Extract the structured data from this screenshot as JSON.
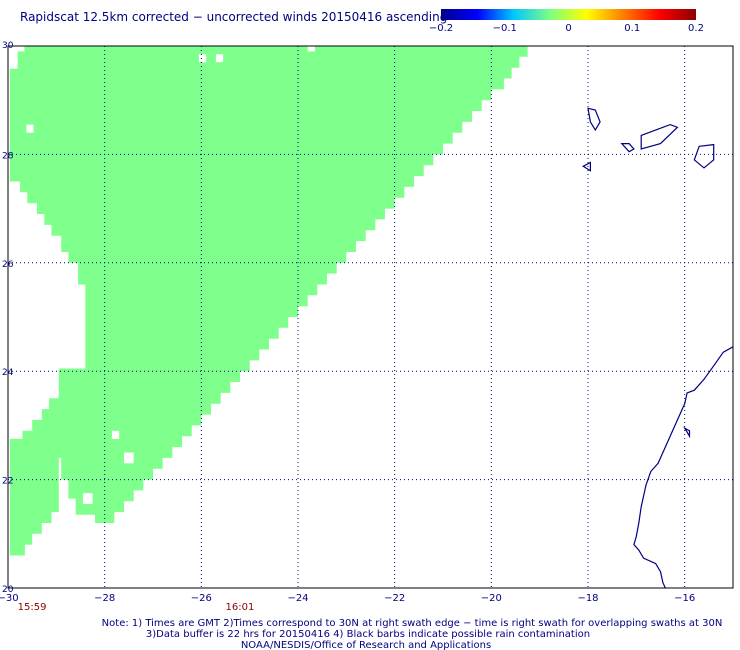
{
  "title": "Rapidscat 12.5km corrected − uncorrected winds 20150416 ascending",
  "colorbar": {
    "ticks": [
      "−0.2",
      "−0.1",
      "0",
      "0.1",
      "0.2"
    ],
    "values": [
      -0.2,
      -0.1,
      0,
      0.1,
      0.2
    ],
    "colors": [
      "#00008c",
      "#0000ff",
      "#00c8ff",
      "#7fff7f",
      "#ffff00",
      "#ff7f00",
      "#ff0000",
      "#8c0000"
    ]
  },
  "map": {
    "lon_range": [
      -30,
      -15
    ],
    "lat_range": [
      20,
      30
    ],
    "x_tick_values": [
      -30,
      -28,
      -26,
      -24,
      -22,
      -20,
      -18,
      -16
    ],
    "x_tick_labels": [
      "−30",
      "−28",
      "−26",
      "−24",
      "−22",
      "−20",
      "−18",
      "−16"
    ],
    "y_tick_values": [
      20,
      22,
      24,
      26,
      28,
      30
    ],
    "y_tick_labels": [
      "20",
      "22",
      "24",
      "26",
      "28",
      "30"
    ],
    "gridlines": true,
    "swath_color": "#7fff8c",
    "coast_color": "#000080",
    "swath_polygon": [
      [
        -29.96,
        29.58
      ],
      [
        -29.8,
        29.58
      ],
      [
        -29.8,
        29.9
      ],
      [
        -29.66,
        29.9
      ],
      [
        -29.66,
        30.0
      ],
      [
        -19.25,
        30.0
      ],
      [
        -19.25,
        29.8
      ],
      [
        -19.42,
        29.8
      ],
      [
        -19.42,
        29.6
      ],
      [
        -19.58,
        29.6
      ],
      [
        -19.58,
        29.4
      ],
      [
        -19.74,
        29.4
      ],
      [
        -19.74,
        29.2
      ],
      [
        -20.0,
        29.2
      ],
      [
        -20.0,
        29.0
      ],
      [
        -20.2,
        29.0
      ],
      [
        -20.2,
        28.8
      ],
      [
        -20.4,
        28.8
      ],
      [
        -20.4,
        28.6
      ],
      [
        -20.6,
        28.6
      ],
      [
        -20.6,
        28.4
      ],
      [
        -20.8,
        28.4
      ],
      [
        -20.8,
        28.2
      ],
      [
        -21.0,
        28.2
      ],
      [
        -21.0,
        28.0
      ],
      [
        -21.2,
        28.0
      ],
      [
        -21.2,
        27.8
      ],
      [
        -21.4,
        27.8
      ],
      [
        -21.4,
        27.6
      ],
      [
        -21.6,
        27.6
      ],
      [
        -21.6,
        27.4
      ],
      [
        -21.8,
        27.4
      ],
      [
        -21.8,
        27.2
      ],
      [
        -22.0,
        27.2
      ],
      [
        -22.0,
        27.0
      ],
      [
        -22.2,
        27.0
      ],
      [
        -22.2,
        26.8
      ],
      [
        -22.4,
        26.8
      ],
      [
        -22.4,
        26.6
      ],
      [
        -22.6,
        26.6
      ],
      [
        -22.6,
        26.4
      ],
      [
        -22.8,
        26.4
      ],
      [
        -22.8,
        26.2
      ],
      [
        -23.0,
        26.2
      ],
      [
        -23.0,
        26.0
      ],
      [
        -23.2,
        26.0
      ],
      [
        -23.2,
        25.8
      ],
      [
        -23.4,
        25.8
      ],
      [
        -23.4,
        25.6
      ],
      [
        -23.6,
        25.6
      ],
      [
        -23.6,
        25.4
      ],
      [
        -23.8,
        25.4
      ],
      [
        -23.8,
        25.2
      ],
      [
        -24.0,
        25.2
      ],
      [
        -24.0,
        25.0
      ],
      [
        -24.2,
        25.0
      ],
      [
        -24.2,
        24.8
      ],
      [
        -24.4,
        24.8
      ],
      [
        -24.4,
        24.6
      ],
      [
        -24.6,
        24.6
      ],
      [
        -24.6,
        24.4
      ],
      [
        -24.8,
        24.4
      ],
      [
        -24.8,
        24.2
      ],
      [
        -25.0,
        24.2
      ],
      [
        -25.0,
        24.0
      ],
      [
        -25.2,
        24.0
      ],
      [
        -25.2,
        23.8
      ],
      [
        -25.4,
        23.8
      ],
      [
        -25.4,
        23.6
      ],
      [
        -25.6,
        23.6
      ],
      [
        -25.6,
        23.4
      ],
      [
        -25.8,
        23.4
      ],
      [
        -25.8,
        23.2
      ],
      [
        -26.0,
        23.2
      ],
      [
        -26.0,
        23.0
      ],
      [
        -26.2,
        23.0
      ],
      [
        -26.2,
        22.8
      ],
      [
        -26.4,
        22.8
      ],
      [
        -26.4,
        22.6
      ],
      [
        -26.6,
        22.6
      ],
      [
        -26.6,
        22.4
      ],
      [
        -26.8,
        22.4
      ],
      [
        -26.8,
        22.2
      ],
      [
        -27.0,
        22.2
      ],
      [
        -27.0,
        22.0
      ],
      [
        -27.2,
        22.0
      ],
      [
        -27.2,
        21.8
      ],
      [
        -27.4,
        21.8
      ],
      [
        -27.4,
        21.6
      ],
      [
        -27.6,
        21.6
      ],
      [
        -27.6,
        21.4
      ],
      [
        -27.8,
        21.4
      ],
      [
        -27.8,
        21.2
      ],
      [
        -28.2,
        21.2
      ],
      [
        -28.2,
        21.35
      ],
      [
        -28.6,
        21.35
      ],
      [
        -28.6,
        21.65
      ],
      [
        -28.75,
        21.65
      ],
      [
        -28.75,
        22.0
      ],
      [
        -28.9,
        22.0
      ],
      [
        -28.9,
        22.4
      ],
      [
        -28.95,
        22.4
      ],
      [
        -28.95,
        21.4
      ],
      [
        -29.1,
        21.4
      ],
      [
        -29.1,
        21.2
      ],
      [
        -29.3,
        21.2
      ],
      [
        -29.3,
        21.0
      ],
      [
        -29.5,
        21.0
      ],
      [
        -29.5,
        20.8
      ],
      [
        -29.65,
        20.8
      ],
      [
        -29.65,
        20.6
      ],
      [
        -29.96,
        20.6
      ]
    ],
    "notch_polygon": [
      [
        -28.95,
        22.4
      ],
      [
        -28.9,
        22.4
      ],
      [
        -28.9,
        22.8
      ],
      [
        -28.8,
        22.8
      ],
      [
        -28.8,
        23.6
      ],
      [
        -28.65,
        23.6
      ],
      [
        -28.65,
        24.0
      ],
      [
        -28.4,
        24.0
      ],
      [
        -28.4,
        25.6
      ],
      [
        -28.55,
        25.6
      ],
      [
        -28.55,
        26.0
      ],
      [
        -28.9,
        26.0
      ],
      [
        -28.9,
        22.4
      ]
    ],
    "cut_polygon": [
      [
        -29.96,
        24.05
      ],
      [
        -28.4,
        24.05
      ],
      [
        -28.4,
        25.6
      ],
      [
        -28.55,
        25.6
      ],
      [
        -28.55,
        26.0
      ],
      [
        -28.75,
        26.0
      ],
      [
        -28.75,
        26.2
      ],
      [
        -28.9,
        26.2
      ],
      [
        -28.9,
        26.5
      ],
      [
        -29.1,
        26.5
      ],
      [
        -29.1,
        26.7
      ],
      [
        -29.25,
        26.7
      ],
      [
        -29.25,
        26.9
      ],
      [
        -29.4,
        26.9
      ],
      [
        -29.4,
        27.1
      ],
      [
        -29.6,
        27.1
      ],
      [
        -29.6,
        27.3
      ],
      [
        -29.75,
        27.3
      ],
      [
        -29.75,
        27.5
      ],
      [
        -29.96,
        27.5
      ]
    ],
    "lower_cut_polygon": [
      [
        -28.95,
        22.4
      ],
      [
        -28.95,
        24.05
      ],
      [
        -29.96,
        24.05
      ],
      [
        -29.96,
        22.75
      ],
      [
        -29.7,
        22.75
      ],
      [
        -29.7,
        22.9
      ],
      [
        -29.5,
        22.9
      ],
      [
        -29.5,
        23.1
      ],
      [
        -29.3,
        23.1
      ],
      [
        -29.3,
        23.3
      ],
      [
        -29.15,
        23.3
      ],
      [
        -29.15,
        23.5
      ],
      [
        -28.95,
        23.5
      ]
    ],
    "holes": [
      [
        -26.05,
        29.7,
        0.15,
        0.15
      ],
      [
        -25.7,
        29.7,
        0.15,
        0.15
      ],
      [
        -23.8,
        29.9,
        0.15,
        0.15
      ],
      [
        -29.62,
        28.4,
        0.15,
        0.15
      ],
      [
        -27.85,
        22.75,
        0.15,
        0.15
      ],
      [
        -27.6,
        22.3,
        0.2,
        0.2
      ],
      [
        -28.45,
        21.55,
        0.2,
        0.2
      ],
      [
        -28.8,
        21.15,
        0.15,
        0.2
      ]
    ],
    "coast_africa": [
      [
        -15.0,
        24.45
      ],
      [
        -15.2,
        24.35
      ],
      [
        -15.4,
        24.1
      ],
      [
        -15.6,
        23.85
      ],
      [
        -15.8,
        23.65
      ],
      [
        -15.95,
        23.6
      ],
      [
        -16.0,
        23.4
      ],
      [
        -16.1,
        23.2
      ],
      [
        -16.2,
        23.0
      ],
      [
        -16.35,
        22.7
      ],
      [
        -16.45,
        22.5
      ],
      [
        -16.55,
        22.3
      ],
      [
        -16.7,
        22.15
      ],
      [
        -16.8,
        21.9
      ],
      [
        -16.9,
        21.5
      ],
      [
        -16.95,
        21.2
      ],
      [
        -17.0,
        20.95
      ],
      [
        -17.05,
        20.8
      ],
      [
        -16.95,
        20.7
      ],
      [
        -16.85,
        20.55
      ],
      [
        -16.6,
        20.45
      ],
      [
        -16.5,
        20.3
      ],
      [
        -16.45,
        20.1
      ],
      [
        -16.4,
        20.0
      ]
    ],
    "islands": [
      [
        [
          -18.0,
          28.85
        ],
        [
          -17.85,
          28.82
        ],
        [
          -17.75,
          28.6
        ],
        [
          -17.85,
          28.45
        ],
        [
          -17.95,
          28.6
        ],
        [
          -18.0,
          28.85
        ]
      ],
      [
        [
          -17.3,
          28.2
        ],
        [
          -17.15,
          28.05
        ],
        [
          -17.05,
          28.1
        ],
        [
          -17.15,
          28.2
        ],
        [
          -17.3,
          28.2
        ]
      ],
      [
        [
          -18.1,
          27.78
        ],
        [
          -17.95,
          27.85
        ],
        [
          -17.95,
          27.7
        ],
        [
          -18.1,
          27.78
        ]
      ],
      [
        [
          -16.9,
          28.35
        ],
        [
          -16.3,
          28.55
        ],
        [
          -16.15,
          28.5
        ],
        [
          -16.5,
          28.2
        ],
        [
          -16.9,
          28.1
        ],
        [
          -16.9,
          28.35
        ]
      ],
      [
        [
          -15.7,
          28.15
        ],
        [
          -15.4,
          28.18
        ],
        [
          -15.4,
          27.9
        ],
        [
          -15.6,
          27.75
        ],
        [
          -15.8,
          27.9
        ],
        [
          -15.7,
          28.15
        ]
      ],
      [
        [
          -16.0,
          22.95
        ],
        [
          -15.9,
          22.9
        ],
        [
          -15.9,
          22.8
        ],
        [
          -16.0,
          22.95
        ]
      ]
    ]
  },
  "time_labels": [
    {
      "text": "15:59",
      "lon": -29.8
    },
    {
      "text": "16:01",
      "lon": -25.5
    }
  ],
  "notes": {
    "line1": "Note: 1) Times are GMT 2)Times correspond to 30N at right swath edge − time is right swath for overlapping swaths at 30N",
    "line2": "3)Data buffer is 22 hrs for 20150416 4) Black barbs indicate possible rain contamination",
    "line3": "NOAA/NESDIS/Office of Research and Applications"
  }
}
